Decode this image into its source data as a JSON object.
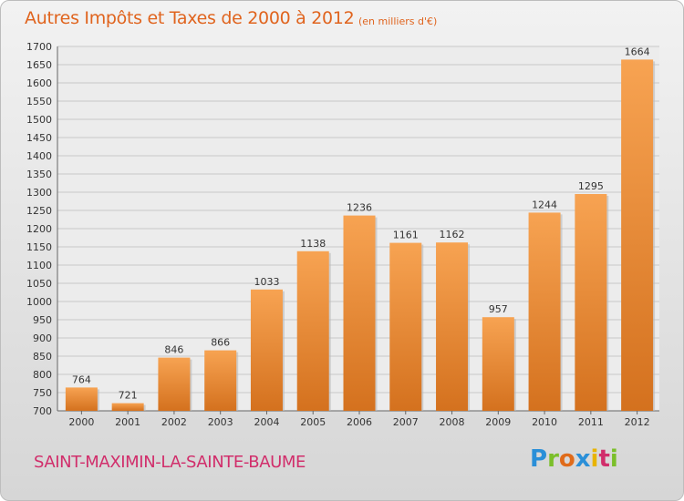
{
  "header": {
    "title": "Autres Impôts et Taxes de 2000 à 2012",
    "unit": "(en milliers d'€)"
  },
  "footer": {
    "commune": "SAINT-MAXIMIN-LA-SAINTE-BAUME",
    "logo": "Proxiti"
  },
  "colors": {
    "bar_light": "#f7a352",
    "bar_dark": "#d4711e",
    "title": "#e0641e",
    "commune": "#d12e6b",
    "grid": "#c8c8c8"
  },
  "chart_data": {
    "type": "bar",
    "categories": [
      "2000",
      "2001",
      "2002",
      "2003",
      "2004",
      "2005",
      "2006",
      "2007",
      "2008",
      "2009",
      "2010",
      "2011",
      "2012"
    ],
    "values": [
      764,
      721,
      846,
      866,
      1033,
      1138,
      1236,
      1161,
      1162,
      957,
      1244,
      1295,
      1664
    ],
    "data_labels": [
      "764",
      "721",
      "846",
      "866",
      "1033",
      "1138",
      "1236",
      "1161",
      "1162",
      "957",
      "1244",
      "1295",
      "1664"
    ],
    "ylim": [
      700,
      1700
    ],
    "yticks": [
      700,
      750,
      800,
      850,
      900,
      950,
      1000,
      1050,
      1100,
      1150,
      1200,
      1250,
      1300,
      1350,
      1400,
      1450,
      1500,
      1550,
      1600,
      1650,
      1700
    ],
    "grid": true,
    "legend": "none"
  }
}
